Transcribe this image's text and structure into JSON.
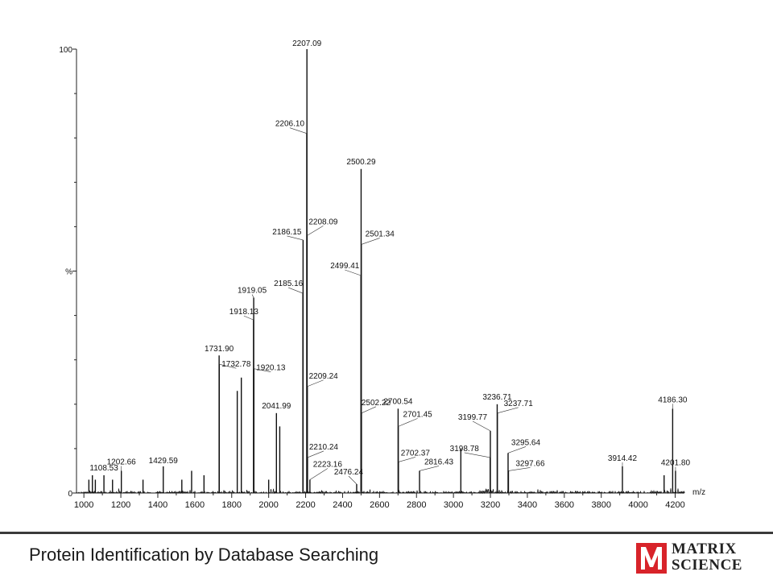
{
  "chart_data": {
    "type": "line",
    "title": "",
    "xlabel": "m/z",
    "ylabel": "%",
    "xlim": [
      960,
      4250
    ],
    "ylim": [
      0,
      100
    ],
    "x_ticks": [
      1000,
      1200,
      1400,
      1600,
      1800,
      2000,
      2200,
      2400,
      2600,
      2800,
      3000,
      3200,
      3400,
      3600,
      3800,
      4000,
      4200
    ],
    "y_tick_labels": [
      {
        "value": 0,
        "label": "0"
      },
      {
        "value": 50,
        "label": "%"
      },
      {
        "value": 100,
        "label": "100"
      }
    ],
    "grid": false,
    "series": [
      {
        "peaks": [
          {
            "mz": 1027,
            "rel": 3
          },
          {
            "mz": 1046,
            "rel": 4
          },
          {
            "mz": 1062,
            "rel": 3
          },
          {
            "mz": 1108.53,
            "rel": 4,
            "label": "1108.53"
          },
          {
            "mz": 1155,
            "rel": 3
          },
          {
            "mz": 1202.66,
            "rel": 5,
            "label": "1202.66"
          },
          {
            "mz": 1320,
            "rel": 3
          },
          {
            "mz": 1429.59,
            "rel": 6,
            "label": "1429.59"
          },
          {
            "mz": 1530,
            "rel": 3
          },
          {
            "mz": 1583,
            "rel": 5
          },
          {
            "mz": 1650,
            "rel": 4
          },
          {
            "mz": 1731.9,
            "rel": 31,
            "label": "1731.90"
          },
          {
            "mz": 1732.78,
            "rel": 29,
            "label": "1732.78"
          },
          {
            "mz": 1830,
            "rel": 23
          },
          {
            "mz": 1852,
            "rel": 26
          },
          {
            "mz": 1918.13,
            "rel": 39,
            "label": "1918.13"
          },
          {
            "mz": 1919.05,
            "rel": 44,
            "label": "1919.05"
          },
          {
            "mz": 1920.13,
            "rel": 28,
            "label": "1920.13"
          },
          {
            "mz": 2000,
            "rel": 3
          },
          {
            "mz": 2041.99,
            "rel": 18,
            "label": "2041.99"
          },
          {
            "mz": 2060,
            "rel": 15
          },
          {
            "mz": 2185.16,
            "rel": 45,
            "label": "2185.16"
          },
          {
            "mz": 2186.15,
            "rel": 57,
            "label": "2186.15"
          },
          {
            "mz": 2206.1,
            "rel": 81,
            "label": "2206.10"
          },
          {
            "mz": 2207.09,
            "rel": 100,
            "label": "2207.09"
          },
          {
            "mz": 2208.09,
            "rel": 58,
            "label": "2208.09"
          },
          {
            "mz": 2209.24,
            "rel": 24,
            "label": "2209.24"
          },
          {
            "mz": 2210.24,
            "rel": 8,
            "label": "2210.24"
          },
          {
            "mz": 2223.16,
            "rel": 3,
            "label": "2223.16"
          },
          {
            "mz": 2476.24,
            "rel": 2,
            "label": "2476.24"
          },
          {
            "mz": 2499.41,
            "rel": 49,
            "label": "2499.41"
          },
          {
            "mz": 2500.29,
            "rel": 73,
            "label": "2500.29"
          },
          {
            "mz": 2501.34,
            "rel": 56,
            "label": "2501.34"
          },
          {
            "mz": 2502.22,
            "rel": 18,
            "label": "2502.22"
          },
          {
            "mz": 2700.54,
            "rel": 19,
            "label": "2700.54"
          },
          {
            "mz": 2701.45,
            "rel": 15,
            "label": "2701.45"
          },
          {
            "mz": 2702.37,
            "rel": 7,
            "label": "2702.37"
          },
          {
            "mz": 2816.43,
            "rel": 5,
            "label": "2816.43"
          },
          {
            "mz": 3040,
            "rel": 10
          },
          {
            "mz": 3198.78,
            "rel": 8,
            "label": "3198.78"
          },
          {
            "mz": 3199.77,
            "rel": 14,
            "label": "3199.77"
          },
          {
            "mz": 3236.71,
            "rel": 20,
            "label": "3236.71"
          },
          {
            "mz": 3237.71,
            "rel": 18,
            "label": "3237.71"
          },
          {
            "mz": 3295.64,
            "rel": 9,
            "label": "3295.64"
          },
          {
            "mz": 3297.66,
            "rel": 5,
            "label": "3297.66"
          },
          {
            "mz": 3914.42,
            "rel": 6,
            "label": "3914.42"
          },
          {
            "mz": 4140,
            "rel": 4
          },
          {
            "mz": 4186.3,
            "rel": 19,
            "label": "4186.30"
          },
          {
            "mz": 4201.8,
            "rel": 5,
            "label": "4201.80"
          }
        ]
      }
    ]
  },
  "footer": {
    "title": "Protein Identification by Database Searching",
    "logo_line1": "MATRIX",
    "logo_line2": "SCIENCE",
    "logo_color": "#d8232a"
  }
}
